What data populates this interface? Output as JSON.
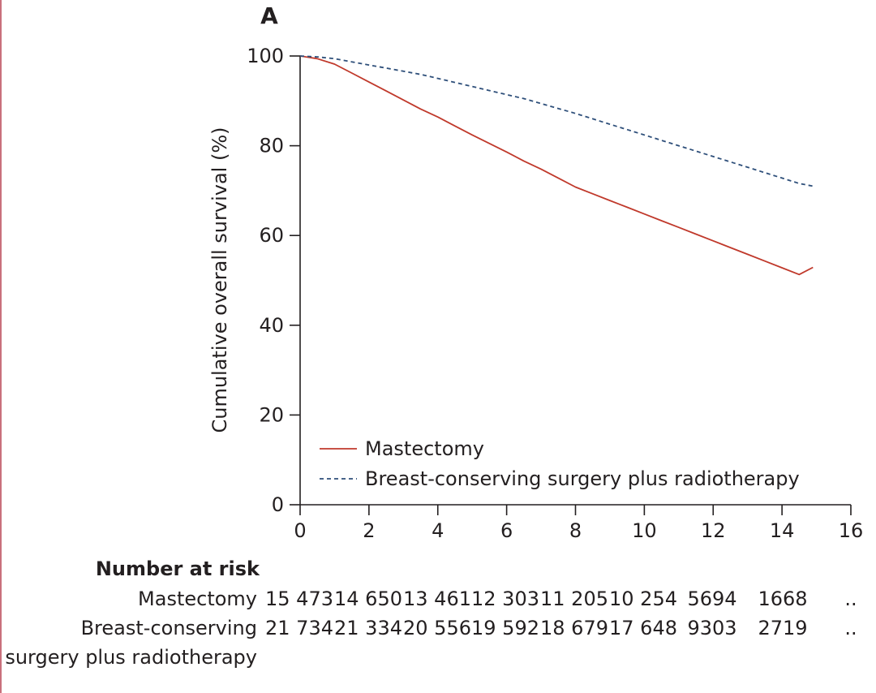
{
  "chart_data": {
    "type": "line",
    "panel_label": "A",
    "title": "",
    "xlabel": "",
    "ylabel": "Cumulative overall survival (%)",
    "xlim": [
      0,
      16
    ],
    "ylim": [
      0,
      100
    ],
    "x_ticks": [
      0,
      2,
      4,
      6,
      8,
      10,
      12,
      14,
      16
    ],
    "y_ticks": [
      0,
      20,
      40,
      60,
      80,
      100
    ],
    "grid": false,
    "legend_position": "bottom-left",
    "series": [
      {
        "name": "Mastectomy",
        "color": "#c0392b",
        "style": "solid",
        "x": [
          0,
          0.5,
          1,
          1.5,
          2,
          2.5,
          3,
          3.5,
          4,
          4.5,
          5,
          5.5,
          6,
          6.5,
          7,
          7.5,
          8,
          8.5,
          9,
          9.5,
          10,
          10.5,
          11,
          11.5,
          12,
          12.5,
          13,
          13.5,
          14,
          14.5,
          14.9
        ],
        "y": [
          100,
          99.4,
          98.2,
          96.2,
          94.2,
          92.2,
          90.2,
          88.2,
          86.4,
          84.4,
          82.4,
          80.5,
          78.6,
          76.6,
          74.8,
          72.8,
          70.8,
          69.3,
          67.8,
          66.3,
          64.8,
          63.3,
          61.8,
          60.3,
          58.8,
          57.3,
          55.8,
          54.3,
          52.8,
          51.3,
          52.9
        ]
      },
      {
        "name": "Breast-conserving surgery plus radiotherapy",
        "color": "#2e4f7a",
        "style": "dashed",
        "x": [
          0,
          0.5,
          1,
          1.5,
          2,
          2.5,
          3,
          3.5,
          4,
          4.5,
          5,
          5.5,
          6,
          6.5,
          7,
          7.5,
          8,
          8.5,
          9,
          9.5,
          10,
          10.5,
          11,
          11.5,
          12,
          12.5,
          13,
          13.5,
          14,
          14.5,
          14.9
        ],
        "y": [
          100,
          99.8,
          99.4,
          98.7,
          98.0,
          97.3,
          96.6,
          95.9,
          95.0,
          94.1,
          93.2,
          92.3,
          91.4,
          90.5,
          89.4,
          88.3,
          87.2,
          86.0,
          84.8,
          83.6,
          82.4,
          81.2,
          80.0,
          78.8,
          77.6,
          76.4,
          75.2,
          74.0,
          72.8,
          71.6,
          71.0
        ]
      }
    ],
    "number_at_risk": {
      "title": "Number at risk",
      "rows": [
        {
          "label_lines": [
            "Mastectomy"
          ],
          "values": [
            "15 473",
            "14 650",
            "13 461",
            "12 303",
            "11 205",
            "10 254",
            "5694",
            "1668",
            ".."
          ]
        },
        {
          "label_lines": [
            "Breast-conserving",
            "surgery plus radiotherapy"
          ],
          "values": [
            "21 734",
            "21 334",
            "20 556",
            "19 592",
            "18 679",
            "17 648",
            "9303",
            "2719",
            ".."
          ]
        }
      ]
    }
  }
}
